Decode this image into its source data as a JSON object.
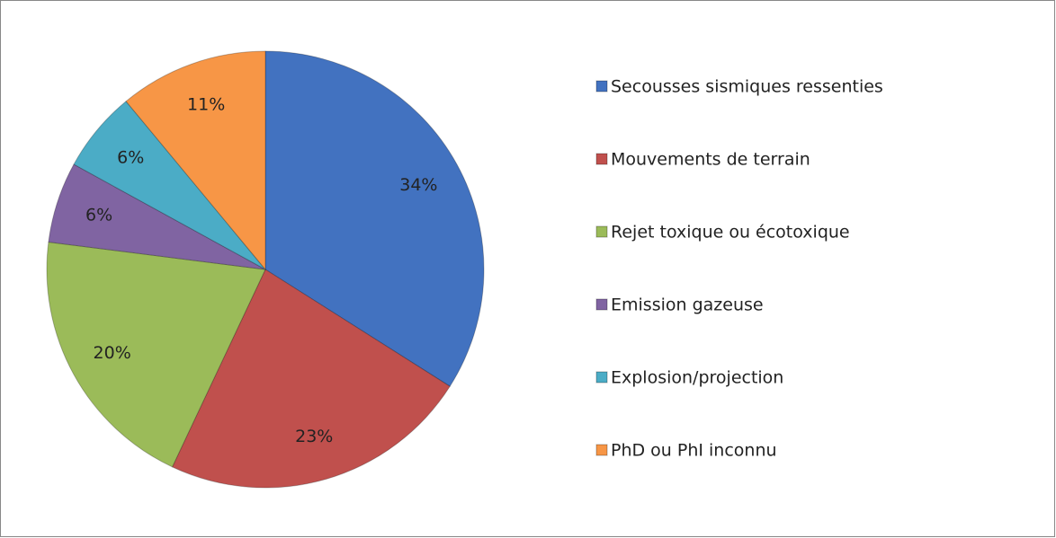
{
  "chart_data": {
    "type": "pie",
    "categories": [
      "Secousses sismiques ressenties",
      "Mouvements de terrain",
      "Rejet toxique ou écotoxique",
      "Emission gazeuse",
      "Explosion/projection",
      "PhD ou PhI inconnu"
    ],
    "values": [
      34,
      23,
      20,
      6,
      6,
      11
    ],
    "value_labels": [
      "34%",
      "23%",
      "20%",
      "6%",
      "6%",
      "11%"
    ],
    "colors": [
      "#4272c0",
      "#c0504d",
      "#9bbb59",
      "#8064a2",
      "#4bacc6",
      "#f79646"
    ],
    "legend": "right"
  }
}
